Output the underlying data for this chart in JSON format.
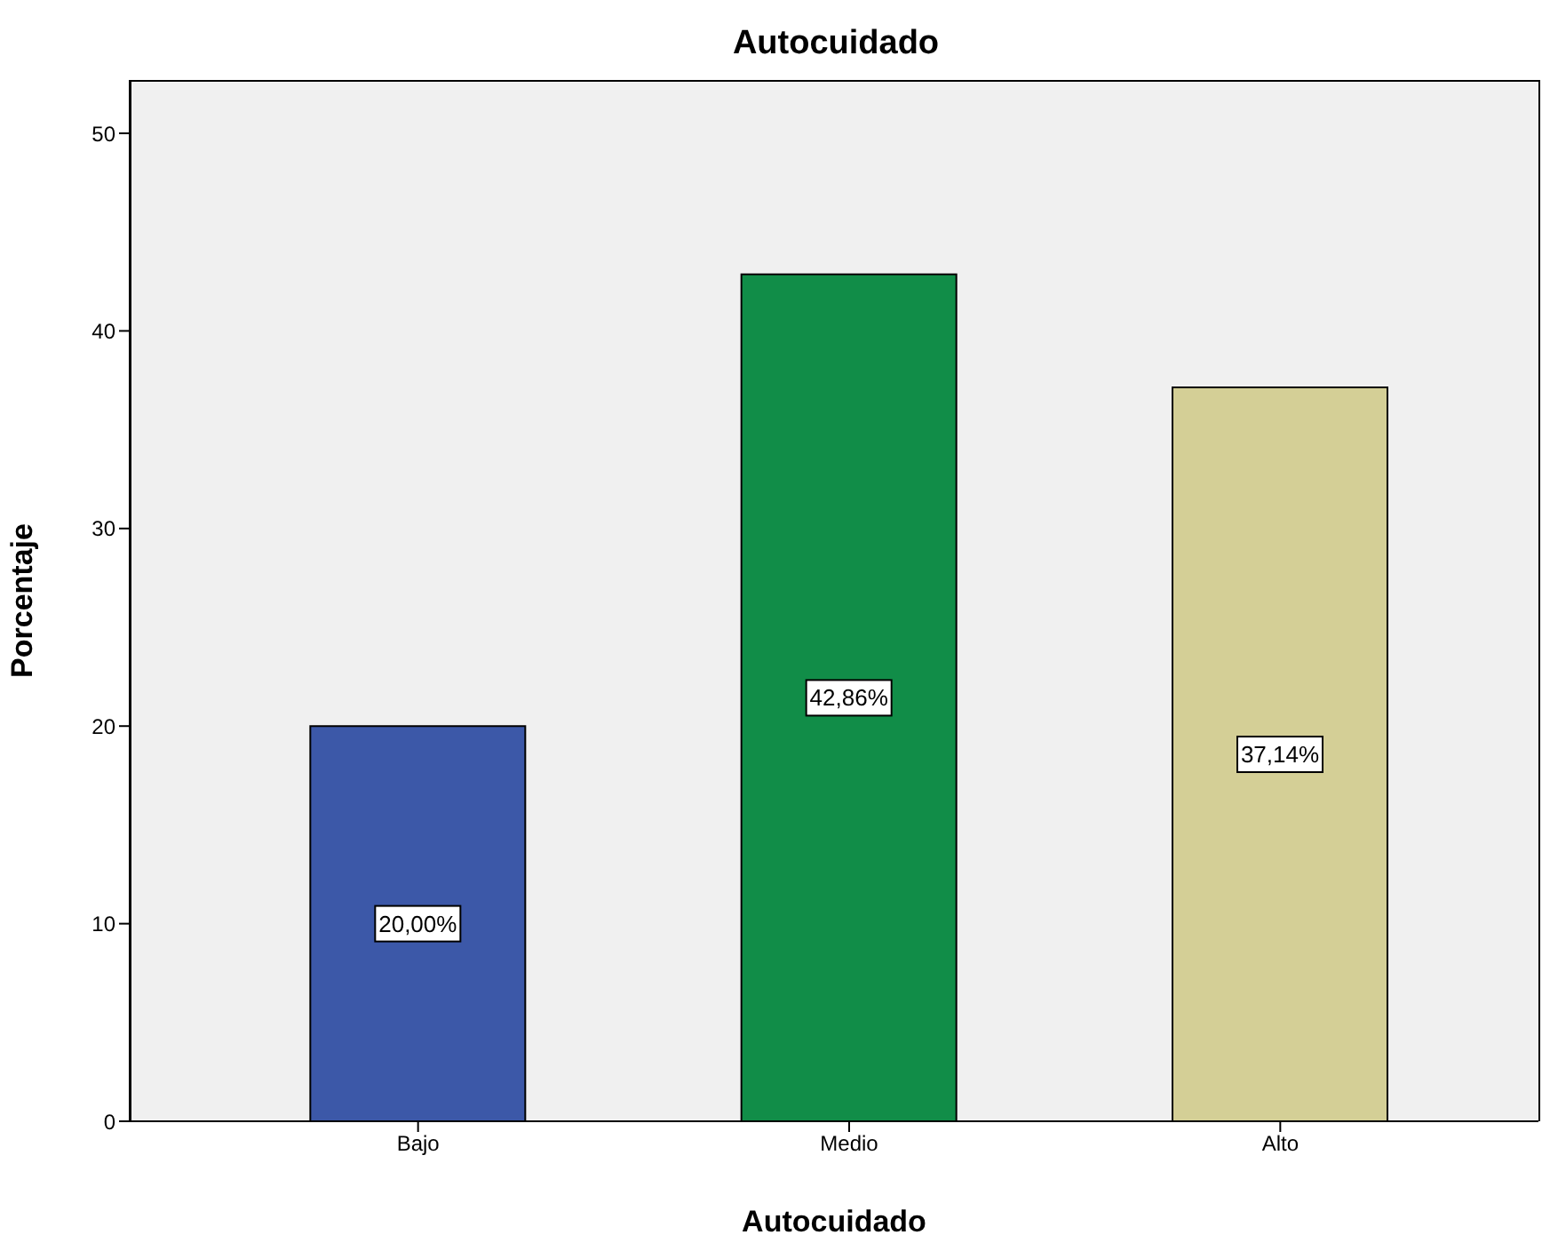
{
  "chart_data": {
    "type": "bar",
    "title": "Autocuidado",
    "xlabel": "Autocuidado",
    "ylabel": "Porcentaje",
    "categories": [
      "Bajo",
      "Medio",
      "Alto"
    ],
    "values": [
      20,
      42.86,
      37.14
    ],
    "value_labels": [
      "20,00%",
      "42,86%",
      "37,14%"
    ],
    "colors": [
      "#3c58a8",
      "#118d48",
      "#d4cf96"
    ],
    "ylim": [
      0,
      52.7
    ],
    "yticks": [
      0,
      10,
      20,
      30,
      40,
      50
    ]
  }
}
